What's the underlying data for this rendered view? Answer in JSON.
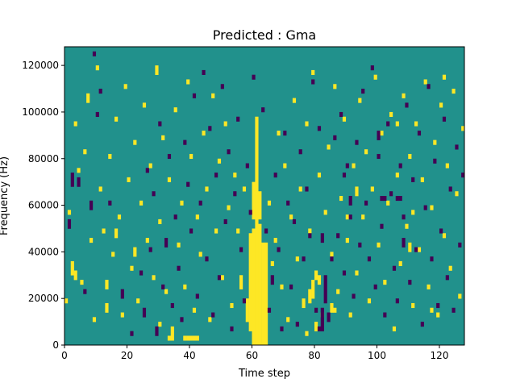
{
  "chart_data": {
    "type": "heatmap",
    "title": "Predicted : Gma",
    "xlabel": "Time step",
    "ylabel": "Frequency (Hz)",
    "xlim": [
      0,
      128
    ],
    "ylim": [
      0,
      128000
    ],
    "xticks": [
      "0",
      "20",
      "40",
      "60",
      "80",
      "100",
      "120"
    ],
    "yticks": [
      "0",
      "20000",
      "40000",
      "60000",
      "80000",
      "100000",
      "120000"
    ],
    "grid": false,
    "legend": "none",
    "colors": {
      "background": "#21918c",
      "high": "#fde725",
      "low": "#440154"
    },
    "rows": 64,
    "cols": 128,
    "high_runs": [
      [
        60,
        0,
        25
      ],
      [
        61,
        0,
        27
      ],
      [
        62,
        0,
        26
      ],
      [
        63,
        0,
        22
      ],
      [
        64,
        0,
        22
      ],
      [
        59,
        3,
        24
      ],
      [
        58,
        5,
        10
      ],
      [
        60,
        27,
        35
      ],
      [
        61,
        27,
        42
      ],
      [
        62,
        27,
        33
      ],
      [
        61,
        42,
        49
      ],
      [
        55,
        24,
        25
      ],
      [
        56,
        12,
        15
      ],
      [
        57,
        33,
        34
      ],
      [
        65,
        30,
        31
      ],
      [
        66,
        17,
        18
      ],
      [
        0,
        9,
        10
      ],
      [
        1,
        28,
        29
      ],
      [
        2,
        15,
        18
      ],
      [
        3,
        47,
        48
      ],
      [
        4,
        37,
        38
      ],
      [
        5,
        13,
        14
      ],
      [
        6,
        41,
        42
      ],
      [
        7,
        52,
        54
      ],
      [
        8,
        22,
        23
      ],
      [
        9,
        5,
        6
      ],
      [
        10,
        59,
        60
      ],
      [
        11,
        33,
        34
      ],
      [
        12,
        24,
        25
      ],
      [
        13,
        7,
        9
      ],
      [
        14,
        40,
        41
      ],
      [
        15,
        19,
        20
      ],
      [
        16,
        48,
        49
      ],
      [
        17,
        27,
        28
      ],
      [
        18,
        6,
        7
      ],
      [
        19,
        55,
        56
      ],
      [
        20,
        35,
        36
      ],
      [
        21,
        16,
        17
      ],
      [
        22,
        43,
        44
      ],
      [
        23,
        9,
        10
      ],
      [
        24,
        30,
        31
      ],
      [
        25,
        51,
        52
      ],
      [
        26,
        22,
        23
      ],
      [
        27,
        38,
        39
      ],
      [
        28,
        14,
        15
      ],
      [
        29,
        58,
        60
      ],
      [
        30,
        26,
        27
      ],
      [
        31,
        44,
        45
      ],
      [
        32,
        11,
        12
      ],
      [
        33,
        35,
        36
      ],
      [
        34,
        2,
        4
      ],
      [
        35,
        50,
        51
      ],
      [
        36,
        21,
        22
      ],
      [
        37,
        30,
        31
      ],
      [
        38,
        12,
        13
      ],
      [
        39,
        56,
        57
      ],
      [
        40,
        40,
        41
      ],
      [
        41,
        7,
        8
      ],
      [
        42,
        27,
        28
      ],
      [
        43,
        19,
        20
      ],
      [
        44,
        45,
        46
      ],
      [
        45,
        33,
        34
      ],
      [
        46,
        5,
        6
      ],
      [
        47,
        53,
        54
      ],
      [
        48,
        24,
        25
      ],
      [
        49,
        39,
        40
      ],
      [
        50,
        14,
        15
      ],
      [
        51,
        47,
        48
      ],
      [
        52,
        29,
        30
      ],
      [
        53,
        8,
        9
      ],
      [
        54,
        36,
        37
      ],
      [
        67,
        22,
        23
      ],
      [
        68,
        45,
        46
      ],
      [
        69,
        12,
        13
      ],
      [
        70,
        38,
        39
      ],
      [
        71,
        5,
        6
      ],
      [
        72,
        27,
        28
      ],
      [
        73,
        52,
        53
      ],
      [
        74,
        18,
        19
      ],
      [
        75,
        33,
        34
      ],
      [
        76,
        9,
        10
      ],
      [
        77,
        47,
        48
      ],
      [
        78,
        24,
        25
      ],
      [
        79,
        58,
        59
      ],
      [
        80,
        14,
        16
      ],
      [
        81,
        36,
        37
      ],
      [
        82,
        6,
        7
      ],
      [
        83,
        28,
        29
      ],
      [
        84,
        42,
        43
      ],
      [
        85,
        19,
        20
      ],
      [
        86,
        55,
        56
      ],
      [
        87,
        11,
        12
      ],
      [
        88,
        31,
        32
      ],
      [
        89,
        48,
        49
      ],
      [
        90,
        22,
        23
      ],
      [
        91,
        6,
        7
      ],
      [
        92,
        38,
        39
      ],
      [
        93,
        15,
        16
      ],
      [
        94,
        52,
        53
      ],
      [
        95,
        27,
        28
      ],
      [
        96,
        41,
        42
      ],
      [
        97,
        9,
        10
      ],
      [
        98,
        33,
        34
      ],
      [
        99,
        57,
        58
      ],
      [
        100,
        21,
        22
      ],
      [
        101,
        45,
        46
      ],
      [
        102,
        13,
        14
      ],
      [
        103,
        30,
        31
      ],
      [
        104,
        49,
        50
      ],
      [
        105,
        3,
        4
      ],
      [
        106,
        36,
        37
      ],
      [
        107,
        17,
        18
      ],
      [
        108,
        53,
        54
      ],
      [
        109,
        25,
        26
      ],
      [
        110,
        40,
        41
      ],
      [
        111,
        8,
        9
      ],
      [
        112,
        47,
        48
      ],
      [
        113,
        20,
        21
      ],
      [
        114,
        35,
        36
      ],
      [
        115,
        56,
        57
      ],
      [
        116,
        12,
        13
      ],
      [
        117,
        29,
        30
      ],
      [
        118,
        43,
        44
      ],
      [
        119,
        6,
        7
      ],
      [
        120,
        51,
        52
      ],
      [
        121,
        23,
        24
      ],
      [
        122,
        38,
        39
      ],
      [
        123,
        16,
        17
      ],
      [
        124,
        54,
        55
      ],
      [
        125,
        32,
        33
      ],
      [
        126,
        10,
        11
      ],
      [
        127,
        46,
        47
      ],
      [
        3,
        14,
        16
      ],
      [
        13,
        12,
        14
      ],
      [
        16,
        23,
        25
      ],
      [
        22,
        19,
        21
      ],
      [
        30,
        4,
        5
      ],
      [
        38,
        1,
        2
      ],
      [
        39,
        1,
        2
      ],
      [
        40,
        1,
        2
      ],
      [
        41,
        1,
        2
      ],
      [
        42,
        1,
        2
      ],
      [
        33,
        1,
        2
      ],
      [
        34,
        1,
        2
      ],
      [
        76,
        8,
        9
      ],
      [
        77,
        2,
        3
      ],
      [
        78,
        9,
        12
      ],
      [
        79,
        10,
        14
      ],
      [
        80,
        3,
        5
      ],
      [
        81,
        13,
        15
      ],
      [
        85,
        7,
        9
      ],
      [
        86,
        7,
        8
      ],
      [
        90,
        27,
        28
      ],
      [
        93,
        32,
        34
      ],
      [
        111,
        28,
        29
      ],
      [
        117,
        7,
        8
      ],
      [
        121,
        57,
        58
      ],
      [
        110,
        20,
        22
      ],
      [
        106,
        47,
        48
      ]
    ],
    "low_runs": [
      [
        2,
        34,
        37
      ],
      [
        4,
        34,
        36
      ],
      [
        1,
        25,
        27
      ],
      [
        8,
        29,
        31
      ],
      [
        6,
        11,
        12
      ],
      [
        9,
        62,
        63
      ],
      [
        10,
        49,
        50
      ],
      [
        11,
        54,
        55
      ],
      [
        14,
        30,
        31
      ],
      [
        18,
        10,
        12
      ],
      [
        21,
        2,
        3
      ],
      [
        24,
        15,
        16
      ],
      [
        25,
        6,
        8
      ],
      [
        26,
        37,
        38
      ],
      [
        27,
        20,
        21
      ],
      [
        28,
        32,
        33
      ],
      [
        29,
        2,
        4
      ],
      [
        30,
        47,
        48
      ],
      [
        31,
        12,
        13
      ],
      [
        32,
        21,
        23
      ],
      [
        33,
        40,
        41
      ],
      [
        34,
        8,
        9
      ],
      [
        35,
        27,
        28
      ],
      [
        36,
        16,
        17
      ],
      [
        37,
        5,
        6
      ],
      [
        38,
        43,
        44
      ],
      [
        39,
        34,
        35
      ],
      [
        40,
        24,
        25
      ],
      [
        41,
        53,
        54
      ],
      [
        42,
        10,
        11
      ],
      [
        43,
        30,
        31
      ],
      [
        44,
        58,
        59
      ],
      [
        45,
        18,
        19
      ],
      [
        46,
        46,
        47
      ],
      [
        47,
        6,
        7
      ],
      [
        48,
        36,
        37
      ],
      [
        49,
        14,
        15
      ],
      [
        50,
        55,
        56
      ],
      [
        51,
        26,
        27
      ],
      [
        52,
        41,
        42
      ],
      [
        53,
        3,
        4
      ],
      [
        54,
        32,
        33
      ],
      [
        55,
        48,
        49
      ],
      [
        56,
        20,
        21
      ],
      [
        57,
        9,
        10
      ],
      [
        58,
        38,
        39
      ],
      [
        59,
        28,
        29
      ],
      [
        60,
        57,
        58
      ],
      [
        63,
        50,
        51
      ],
      [
        64,
        24,
        25
      ],
      [
        65,
        7,
        8
      ],
      [
        66,
        13,
        15
      ],
      [
        67,
        36,
        37
      ],
      [
        68,
        20,
        21
      ],
      [
        69,
        3,
        4
      ],
      [
        70,
        45,
        46
      ],
      [
        71,
        30,
        31
      ],
      [
        72,
        12,
        13
      ],
      [
        73,
        26,
        27
      ],
      [
        74,
        4,
        5
      ],
      [
        75,
        41,
        42
      ],
      [
        76,
        18,
        19
      ],
      [
        77,
        33,
        34
      ],
      [
        78,
        23,
        24
      ],
      [
        79,
        56,
        57
      ],
      [
        80,
        7,
        8
      ],
      [
        81,
        46,
        47
      ],
      [
        82,
        3,
        8
      ],
      [
        83,
        9,
        15
      ],
      [
        84,
        5,
        7
      ],
      [
        85,
        18,
        19
      ],
      [
        86,
        44,
        45
      ],
      [
        87,
        23,
        24
      ],
      [
        88,
        49,
        50
      ],
      [
        89,
        15,
        16
      ],
      [
        90,
        38,
        39
      ],
      [
        91,
        27,
        28
      ],
      [
        92,
        10,
        11
      ],
      [
        93,
        43,
        44
      ],
      [
        94,
        21,
        22
      ],
      [
        95,
        54,
        55
      ],
      [
        96,
        30,
        31
      ],
      [
        97,
        18,
        19
      ],
      [
        98,
        59,
        60
      ],
      [
        99,
        12,
        13
      ],
      [
        100,
        40,
        41
      ],
      [
        101,
        25,
        26
      ],
      [
        102,
        6,
        7
      ],
      [
        103,
        47,
        48
      ],
      [
        104,
        32,
        33
      ],
      [
        105,
        16,
        17
      ],
      [
        106,
        9,
        10
      ],
      [
        107,
        38,
        39
      ],
      [
        108,
        27,
        28
      ],
      [
        109,
        51,
        52
      ],
      [
        110,
        13,
        14
      ],
      [
        111,
        35,
        36
      ],
      [
        112,
        20,
        21
      ],
      [
        113,
        45,
        46
      ],
      [
        114,
        4,
        5
      ],
      [
        115,
        29,
        30
      ],
      [
        116,
        55,
        56
      ],
      [
        117,
        18,
        19
      ],
      [
        118,
        39,
        40
      ],
      [
        119,
        8,
        9
      ],
      [
        120,
        24,
        25
      ],
      [
        121,
        48,
        49
      ],
      [
        122,
        14,
        15
      ],
      [
        123,
        33,
        34
      ],
      [
        124,
        7,
        8
      ],
      [
        125,
        42,
        43
      ],
      [
        126,
        21,
        22
      ],
      [
        127,
        36,
        37
      ],
      [
        81,
        3,
        4
      ],
      [
        82,
        22,
        24
      ],
      [
        89,
        36,
        37
      ],
      [
        91,
        30,
        32
      ],
      [
        100,
        44,
        46
      ],
      [
        101,
        31,
        32
      ],
      [
        102,
        31,
        32
      ],
      [
        106,
        31,
        32
      ],
      [
        107,
        31,
        32
      ],
      [
        108,
        21,
        23
      ]
    ]
  }
}
